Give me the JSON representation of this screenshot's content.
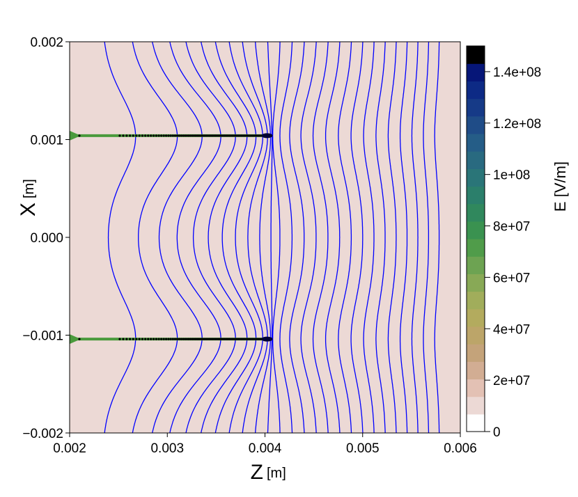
{
  "chart_data": {
    "type": "contour",
    "title": "",
    "xlabel": "Z",
    "xlabel_unit": "[m]",
    "ylabel": "X",
    "ylabel_unit": "[m]",
    "xlim": [
      0.002,
      0.006
    ],
    "ylim": [
      -0.002,
      0.002
    ],
    "x_ticks": [
      {
        "value": 0.002,
        "label": "0.002"
      },
      {
        "value": 0.003,
        "label": "0.003"
      },
      {
        "value": 0.004,
        "label": "0.004"
      },
      {
        "value": 0.005,
        "label": "0.005"
      },
      {
        "value": 0.006,
        "label": "0.006"
      }
    ],
    "y_ticks": [
      {
        "value": 0.002,
        "label": "0.002"
      },
      {
        "value": 0.001,
        "label": "0.001"
      },
      {
        "value": 0.0,
        "label": "0.000"
      },
      {
        "value": -0.001,
        "label": "−0.001"
      },
      {
        "value": -0.002,
        "label": "−0.002"
      }
    ],
    "background_field_color": "#ecd9d5",
    "equipotential_line_color": "#0000ff",
    "equipotential_line_count": 26,
    "electrodes": [
      {
        "x_start": 0.002,
        "x_end": 0.00405,
        "y": 0.00104,
        "color": "#4a9a3c"
      },
      {
        "x_start": 0.002,
        "x_end": 0.00405,
        "y": -0.00104,
        "color": "#4a9a3c"
      }
    ],
    "colorbar": {
      "label": "E [V/m]",
      "min": 0,
      "max": 150000000,
      "ticks": [
        {
          "value": 0,
          "label": "0"
        },
        {
          "value": 20000000,
          "label": "2e+07"
        },
        {
          "value": 40000000,
          "label": "4e+07"
        },
        {
          "value": 60000000,
          "label": "6e+07"
        },
        {
          "value": 80000000,
          "label": "8e+07"
        },
        {
          "value": 100000000,
          "label": "1e+08"
        },
        {
          "value": 120000000,
          "label": "1.2e+08"
        },
        {
          "value": 140000000,
          "label": "1.4e+08"
        }
      ],
      "colors": [
        "#ffffff",
        "#ecd9d5",
        "#e3c1b4",
        "#d2ad93",
        "#c4a37a",
        "#bca569",
        "#b3ab5e",
        "#a1ad5b",
        "#88a956",
        "#6da352",
        "#509c4a",
        "#3a9250",
        "#30885d",
        "#2b7f6b",
        "#2a7578",
        "#296a80",
        "#255d87",
        "#1f4c87",
        "#163a87",
        "#0d2a85",
        "#061678",
        "#000000"
      ]
    }
  }
}
